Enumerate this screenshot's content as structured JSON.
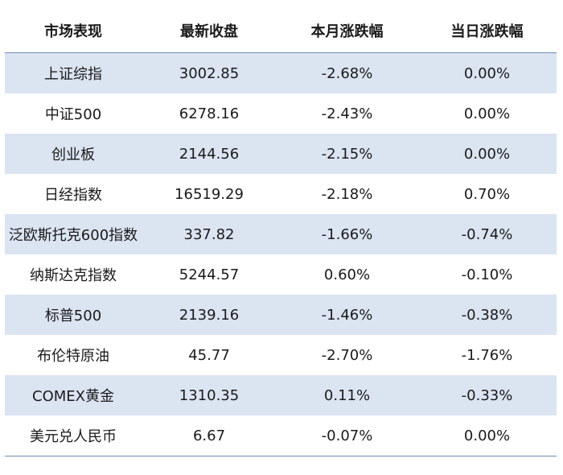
{
  "table": {
    "headers": [
      "市场表现",
      "最新收盘",
      "本月涨跌幅",
      "当日涨跌幅"
    ],
    "rows": [
      [
        "上证综指",
        "3002.85",
        "-2.68%",
        "0.00%"
      ],
      [
        "中证500",
        "6278.16",
        "-2.43%",
        "0.00%"
      ],
      [
        "创业板",
        "2144.56",
        "-2.15%",
        "0.00%"
      ],
      [
        "日经指数",
        "16519.29",
        "-2.18%",
        "0.70%"
      ],
      [
        "泛欧斯托克600指数",
        "337.82",
        "-1.66%",
        "-0.74%"
      ],
      [
        "纳斯达克指数",
        "5244.57",
        "0.60%",
        "-0.10%"
      ],
      [
        "标普500",
        "2139.16",
        "-1.46%",
        "-0.38%"
      ],
      [
        "布伦特原油",
        "45.77",
        "-2.70%",
        "-1.76%"
      ],
      [
        "COMEX黄金",
        "1310.35",
        "0.11%",
        "-0.33%"
      ],
      [
        "美元兑人民币",
        "6.67",
        "-0.07%",
        "0.00%"
      ]
    ]
  },
  "colors": {
    "band": "#dbe4f1",
    "rule": "#6f8fb8"
  }
}
